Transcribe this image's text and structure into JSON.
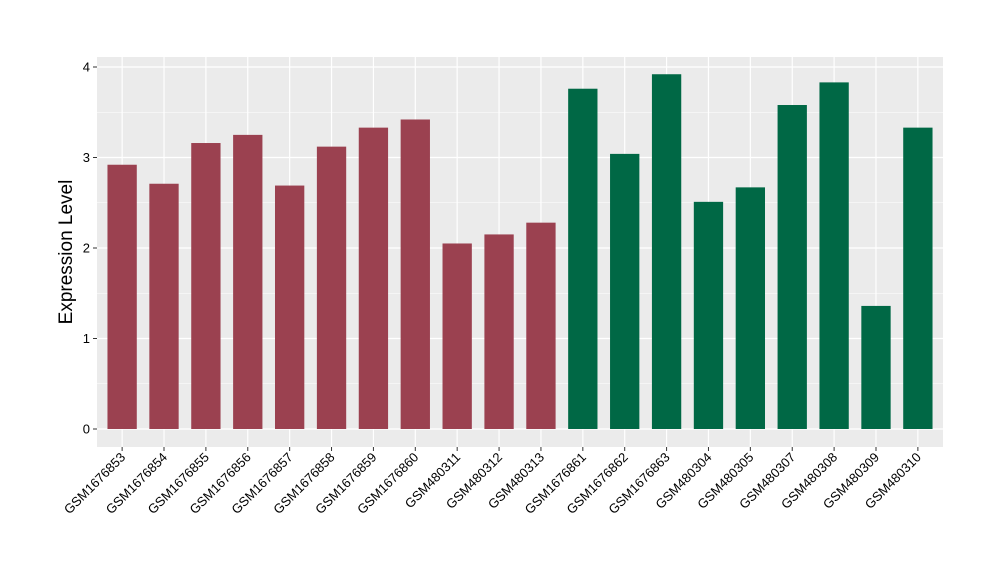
{
  "chart_data": {
    "type": "bar",
    "title": "",
    "xlabel": "",
    "ylabel": "Expression Level",
    "ylim": [
      0,
      4.15
    ],
    "yticks": [
      0,
      1,
      2,
      3,
      4
    ],
    "grid": true,
    "legend": "none",
    "colors": {
      "group1": "#9b4150",
      "group2": "#006845",
      "panel_background": "#ebebeb",
      "grid": "#ffffff"
    },
    "categories": [
      "GSM1676853",
      "GSM1676854",
      "GSM1676855",
      "GSM1676856",
      "GSM1676857",
      "GSM1676858",
      "GSM1676859",
      "GSM1676860",
      "GSM480311",
      "GSM480312",
      "GSM480313",
      "GSM1676861",
      "GSM1676862",
      "GSM1676863",
      "GSM480304",
      "GSM480305",
      "GSM480307",
      "GSM480308",
      "GSM480309",
      "GSM480310"
    ],
    "values": [
      2.92,
      2.71,
      3.16,
      3.25,
      2.69,
      3.12,
      3.33,
      3.42,
      2.05,
      2.15,
      2.28,
      3.76,
      3.04,
      3.92,
      2.51,
      2.67,
      3.58,
      3.83,
      1.36,
      3.33
    ],
    "groups": [
      "group1",
      "group1",
      "group1",
      "group1",
      "group1",
      "group1",
      "group1",
      "group1",
      "group1",
      "group1",
      "group1",
      "group2",
      "group2",
      "group2",
      "group2",
      "group2",
      "group2",
      "group2",
      "group2",
      "group2"
    ]
  }
}
